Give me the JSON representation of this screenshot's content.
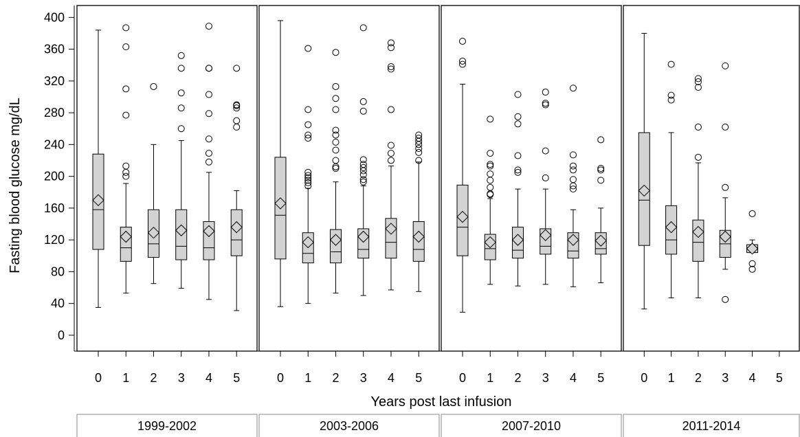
{
  "chart_data": {
    "type": "box",
    "ylabel": "Fasting blood glucose mg/dL",
    "xlabel": "Years post last infusion",
    "ylim": [
      -20,
      415
    ],
    "yticks": [
      0,
      40,
      80,
      120,
      160,
      200,
      240,
      280,
      320,
      360,
      400
    ],
    "categories": [
      "0",
      "1",
      "2",
      "3",
      "4",
      "5"
    ],
    "colors": {
      "box_fill": "#d3d3d3",
      "stroke": "#000000",
      "background": "#ffffff"
    },
    "grid": false,
    "panels": [
      {
        "label": "1999-2002",
        "boxes": [
          {
            "x": "0",
            "min": 35,
            "q1": 108,
            "median": 158,
            "q3": 228,
            "max": 384,
            "mean": 170,
            "outliers": []
          },
          {
            "x": "1",
            "min": 53,
            "q1": 93,
            "median": 110,
            "q3": 136,
            "max": 191,
            "mean": 124,
            "outliers": [
              200,
              205,
              213,
              277,
              310,
              363,
              387
            ]
          },
          {
            "x": "2",
            "min": 65,
            "q1": 98,
            "median": 115,
            "q3": 158,
            "max": 240,
            "mean": 129,
            "outliers": [
              313
            ]
          },
          {
            "x": "3",
            "min": 59,
            "q1": 95,
            "median": 112,
            "q3": 158,
            "max": 245,
            "mean": 132,
            "outliers": [
              260,
              286,
              305,
              336,
              352
            ]
          },
          {
            "x": "4",
            "min": 45,
            "q1": 95,
            "median": 110,
            "q3": 143,
            "max": 205,
            "mean": 131,
            "outliers": [
              218,
              229,
              247,
              279,
              303,
              336,
              336,
              389
            ]
          },
          {
            "x": "5",
            "min": 31,
            "q1": 100,
            "median": 120,
            "q3": 158,
            "max": 182,
            "mean": 136,
            "outliers": [
              262,
              270,
              286,
              289,
              290,
              336
            ]
          }
        ]
      },
      {
        "label": "2003-2006",
        "boxes": [
          {
            "x": "0",
            "min": 36,
            "q1": 96,
            "median": 151,
            "q3": 224,
            "max": 396,
            "mean": 166,
            "outliers": []
          },
          {
            "x": "1",
            "min": 40,
            "q1": 91,
            "median": 103,
            "q3": 129,
            "max": 185,
            "mean": 117,
            "outliers": [
              188,
              192,
              195,
              198,
              201,
              205,
              248,
              252,
              265,
              284,
              361
            ]
          },
          {
            "x": "2",
            "min": 53,
            "q1": 91,
            "median": 105,
            "q3": 133,
            "max": 193,
            "mean": 120,
            "outliers": [
              210,
              212,
              220,
              233,
              243,
              252,
              258,
              284,
              298,
              313,
              356
            ]
          },
          {
            "x": "3",
            "min": 50,
            "q1": 97,
            "median": 108,
            "q3": 134,
            "max": 188,
            "mean": 124,
            "outliers": [
              193,
              196,
              202,
              207,
              211,
              215,
              221,
              282,
              294,
              387
            ]
          },
          {
            "x": "4",
            "min": 57,
            "q1": 97,
            "median": 117,
            "q3": 147,
            "max": 213,
            "mean": 134,
            "outliers": [
              220,
              229,
              239,
              284,
              335,
              338,
              362,
              368
            ]
          },
          {
            "x": "5",
            "min": 55,
            "q1": 93,
            "median": 108,
            "q3": 143,
            "max": 218,
            "mean": 124,
            "outliers": [
              220,
              230,
              235,
              240,
              244,
              248,
              252
            ]
          }
        ]
      },
      {
        "label": "2007-2010",
        "boxes": [
          {
            "x": "0",
            "min": 29,
            "q1": 100,
            "median": 136,
            "q3": 189,
            "max": 316,
            "mean": 149,
            "outliers": [
              341,
              345,
              370
            ]
          },
          {
            "x": "1",
            "min": 64,
            "q1": 95,
            "median": 109,
            "q3": 127,
            "max": 172,
            "mean": 117,
            "outliers": [
              177,
              178,
              186,
              195,
              203,
              213,
              215,
              229,
              272
            ]
          },
          {
            "x": "2",
            "min": 62,
            "q1": 97,
            "median": 107,
            "q3": 136,
            "max": 184,
            "mean": 120,
            "outliers": [
              205,
              208,
              226,
              266,
              275,
              303
            ]
          },
          {
            "x": "3",
            "min": 64,
            "q1": 102,
            "median": 112,
            "q3": 134,
            "max": 184,
            "mean": 126,
            "outliers": [
              198,
              232,
              290,
              292,
              306
            ]
          },
          {
            "x": "4",
            "min": 61,
            "q1": 97,
            "median": 106,
            "q3": 129,
            "max": 158,
            "mean": 120,
            "outliers": [
              184,
              188,
              196,
              208,
              213,
              227,
              311
            ]
          },
          {
            "x": "5",
            "min": 66,
            "q1": 102,
            "median": 109,
            "q3": 129,
            "max": 160,
            "mean": 119,
            "outliers": [
              195,
              208,
              210,
              246
            ]
          }
        ]
      },
      {
        "label": "2011-2014",
        "boxes": [
          {
            "x": "0",
            "min": 33,
            "q1": 113,
            "median": 170,
            "q3": 255,
            "max": 380,
            "mean": 182,
            "outliers": []
          },
          {
            "x": "1",
            "min": 47,
            "q1": 102,
            "median": 120,
            "q3": 163,
            "max": 255,
            "mean": 136,
            "outliers": [
              296,
              302,
              341
            ]
          },
          {
            "x": "2",
            "min": 47,
            "q1": 93,
            "median": 117,
            "q3": 145,
            "max": 217,
            "mean": 130,
            "outliers": [
              224,
              262,
              312,
              319,
              323
            ]
          },
          {
            "x": "3",
            "min": 83,
            "q1": 98,
            "median": 115,
            "q3": 132,
            "max": 173,
            "mean": 124,
            "outliers": [
              45,
              186,
              262,
              339
            ]
          },
          {
            "x": "4",
            "min": 104,
            "q1": 104,
            "median": 110,
            "q3": 114,
            "max": 120,
            "mean": 109,
            "outliers": [
              83,
              90,
              153
            ]
          },
          {
            "x": "5",
            "min": null,
            "q1": null,
            "median": null,
            "q3": null,
            "max": null,
            "mean": null,
            "outliers": []
          }
        ]
      }
    ]
  }
}
